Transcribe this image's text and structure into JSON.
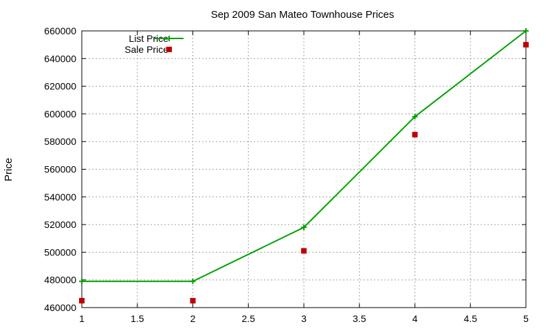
{
  "chart_data": {
    "type": "line",
    "title": "Sep 2009 San Mateo Townhouse Prices",
    "xlabel": "",
    "ylabel": "Price",
    "xlim": [
      1,
      5
    ],
    "ylim": [
      460000,
      660000
    ],
    "x_ticks": [
      1,
      1.5,
      2,
      2.5,
      3,
      3.5,
      4,
      4.5,
      5
    ],
    "x_tick_labels": [
      "1",
      "1.5",
      "2",
      "2.5",
      "3",
      "3.5",
      "4",
      "4.5",
      "5"
    ],
    "y_ticks": [
      460000,
      480000,
      500000,
      520000,
      540000,
      560000,
      580000,
      600000,
      620000,
      640000,
      660000
    ],
    "y_tick_labels": [
      "460000",
      "480000",
      "500000",
      "520000",
      "540000",
      "560000",
      "580000",
      "600000",
      "620000",
      "640000",
      "660000"
    ],
    "grid": true,
    "legend_position": "top-left",
    "series": [
      {
        "name": "List Price",
        "style": "linespoints",
        "marker": "plus",
        "color": "#00a000",
        "x": [
          1,
          2,
          3,
          4,
          5
        ],
        "y": [
          479000,
          479000,
          518000,
          598000,
          660000
        ]
      },
      {
        "name": "Sale Price",
        "style": "points",
        "marker": "square",
        "color": "#c00000",
        "x": [
          1,
          2,
          3,
          4,
          5
        ],
        "y": [
          465000,
          465000,
          501000,
          585000,
          650000
        ]
      }
    ]
  }
}
